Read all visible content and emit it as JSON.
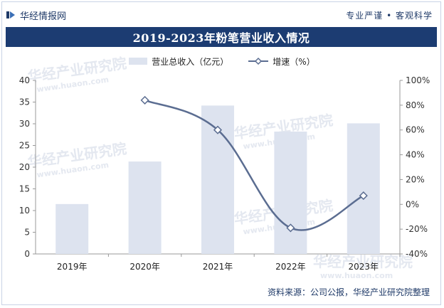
{
  "header": {
    "brand_name": "华经情报网",
    "slogan": "专业严谨 • 客观科学"
  },
  "title": "2019-2023年粉笔营业收入情况",
  "legend": {
    "bar_label": "营业总收入（亿元）",
    "line_label": "增速（%）"
  },
  "watermark": {
    "cn": "华经产业研究院",
    "url": "www.huaon.com"
  },
  "source": "资料来源：公司公报，华经产业研究院整理",
  "colors": {
    "bar": "#dde3ef",
    "line": "#5b6d91",
    "title_bg": "#1c3c72"
  },
  "chart_data": {
    "type": "bar",
    "categories": [
      "2019年",
      "2020年",
      "2021年",
      "2022年",
      "2023年"
    ],
    "series": [
      {
        "name": "营业总收入（亿元）",
        "type": "bar",
        "axis": "left",
        "values": [
          11.5,
          21.3,
          34.2,
          28.2,
          30.1
        ]
      },
      {
        "name": "增速（%）",
        "type": "line",
        "axis": "right",
        "values": [
          null,
          84,
          60,
          -19,
          7
        ]
      }
    ],
    "y_left": {
      "min": 0,
      "max": 40,
      "ticks": [
        "0",
        "5",
        "10",
        "15",
        "20",
        "25",
        "30",
        "35",
        "40"
      ]
    },
    "y_right": {
      "min": -40,
      "max": 100,
      "ticks": [
        "-40%",
        "-20%",
        "0%",
        "20%",
        "40%",
        "60%",
        "80%",
        "100%"
      ]
    },
    "grid": false,
    "legend_position": "top"
  }
}
